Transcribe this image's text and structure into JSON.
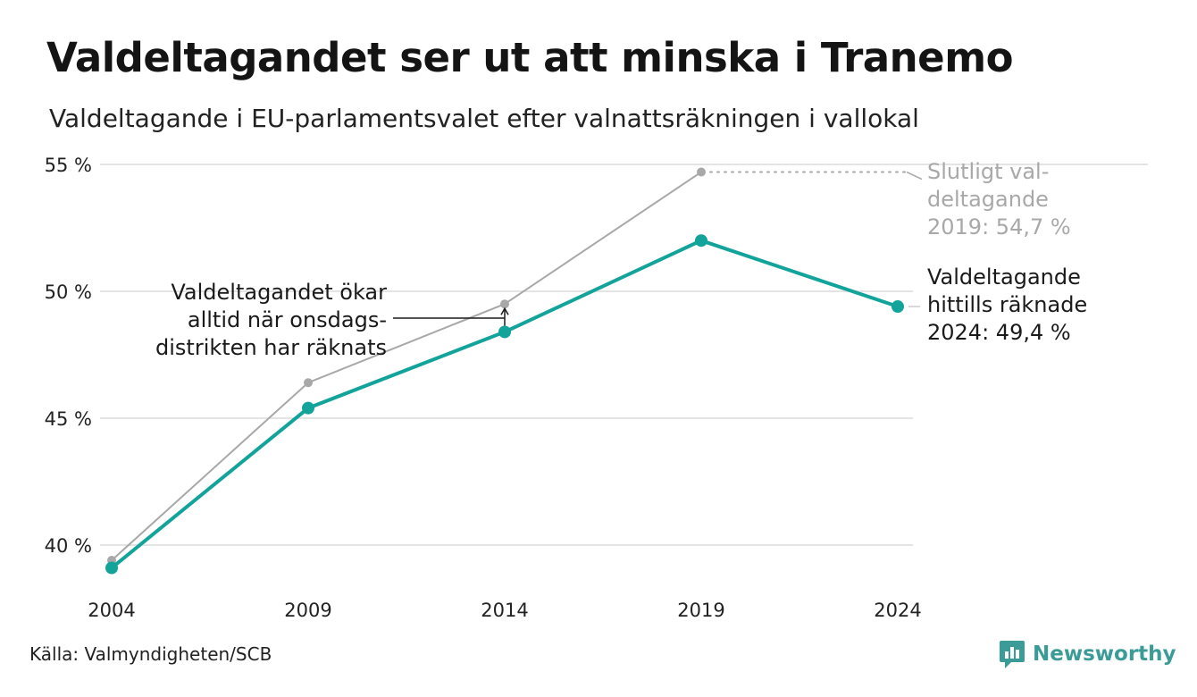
{
  "header": {
    "title": "Valdeltagandet ser ut att minska i Tranemo",
    "subtitle": "Valdeltagande i EU-parlamentsvalet efter valnattsräkningen i vallokal"
  },
  "chart_data": {
    "type": "line",
    "x": [
      2004,
      2009,
      2014,
      2019,
      2024
    ],
    "x_tick_labels": [
      "2004",
      "2009",
      "2014",
      "2019",
      "2024"
    ],
    "y_tick_values": [
      40,
      45,
      50,
      55
    ],
    "y_tick_labels": [
      "40 %",
      "45 %",
      "50 %",
      "55 %"
    ],
    "ylim": [
      39,
      55
    ],
    "grid": true,
    "series": [
      {
        "key": "final",
        "values": [
          39.4,
          46.4,
          49.5,
          54.7,
          null
        ],
        "color": "#a8a8a8"
      },
      {
        "key": "election_night",
        "values": [
          39.1,
          45.4,
          48.4,
          52.0,
          49.4
        ],
        "color": "#12a39a"
      }
    ],
    "annotations": {
      "final_label": [
        "Slutligt val-",
        "deltagande",
        "2019: 54,7 %"
      ],
      "current_label": [
        "Valdeltagande",
        "hittills räknade",
        "2024: 49,4 %"
      ],
      "note_label": [
        "Valdeltagandet ökar",
        "alltid när onsdags-",
        "distrikten har räknats"
      ]
    }
  },
  "footer": {
    "source": "Källa: Valmyndigheten/SCB",
    "brand": "Newsworthy",
    "brand_color": "#3b9c97"
  }
}
